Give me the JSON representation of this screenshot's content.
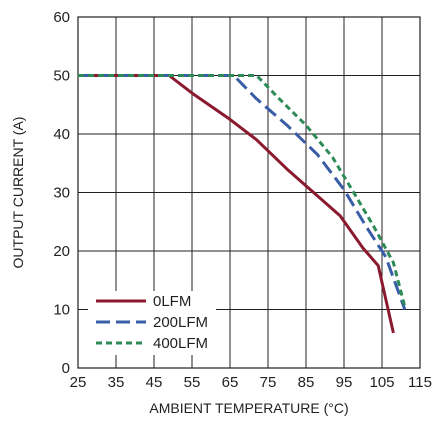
{
  "chart_data": {
    "type": "line",
    "title": "",
    "xlabel": "AMBIENT TEMPERATURE (°C)",
    "ylabel": "OUTPUT CURRENT (A)",
    "xlim": [
      25,
      115
    ],
    "ylim": [
      0,
      60
    ],
    "xticks": [
      25,
      35,
      45,
      55,
      65,
      75,
      85,
      95,
      105,
      115
    ],
    "yticks": [
      0,
      10,
      20,
      30,
      40,
      50,
      60
    ],
    "grid": true,
    "legend": "bottom-left",
    "series": [
      {
        "name": "0LFM",
        "color": "#8b1a2e",
        "dash": "solid",
        "x": [
          25,
          49,
          55,
          65,
          72,
          80,
          87,
          94,
          100,
          104,
          108
        ],
        "y": [
          50,
          50,
          47,
          42.5,
          39,
          34,
          30,
          26,
          20.5,
          17.5,
          6
        ]
      },
      {
        "name": "200LFM",
        "color": "#3a5da8",
        "dash": "long",
        "x": [
          25,
          66,
          72,
          80,
          88,
          95,
          101,
          106,
          111
        ],
        "y": [
          50,
          50,
          46,
          41.5,
          36.5,
          30.5,
          24,
          19,
          10
        ]
      },
      {
        "name": "400LFM",
        "color": "#2e8b57",
        "dash": "short",
        "x": [
          25,
          72,
          78,
          85,
          92,
          98,
          103,
          108,
          111
        ],
        "y": [
          50,
          50,
          46,
          41.5,
          36,
          29.5,
          24,
          18,
          10.5
        ]
      }
    ]
  }
}
